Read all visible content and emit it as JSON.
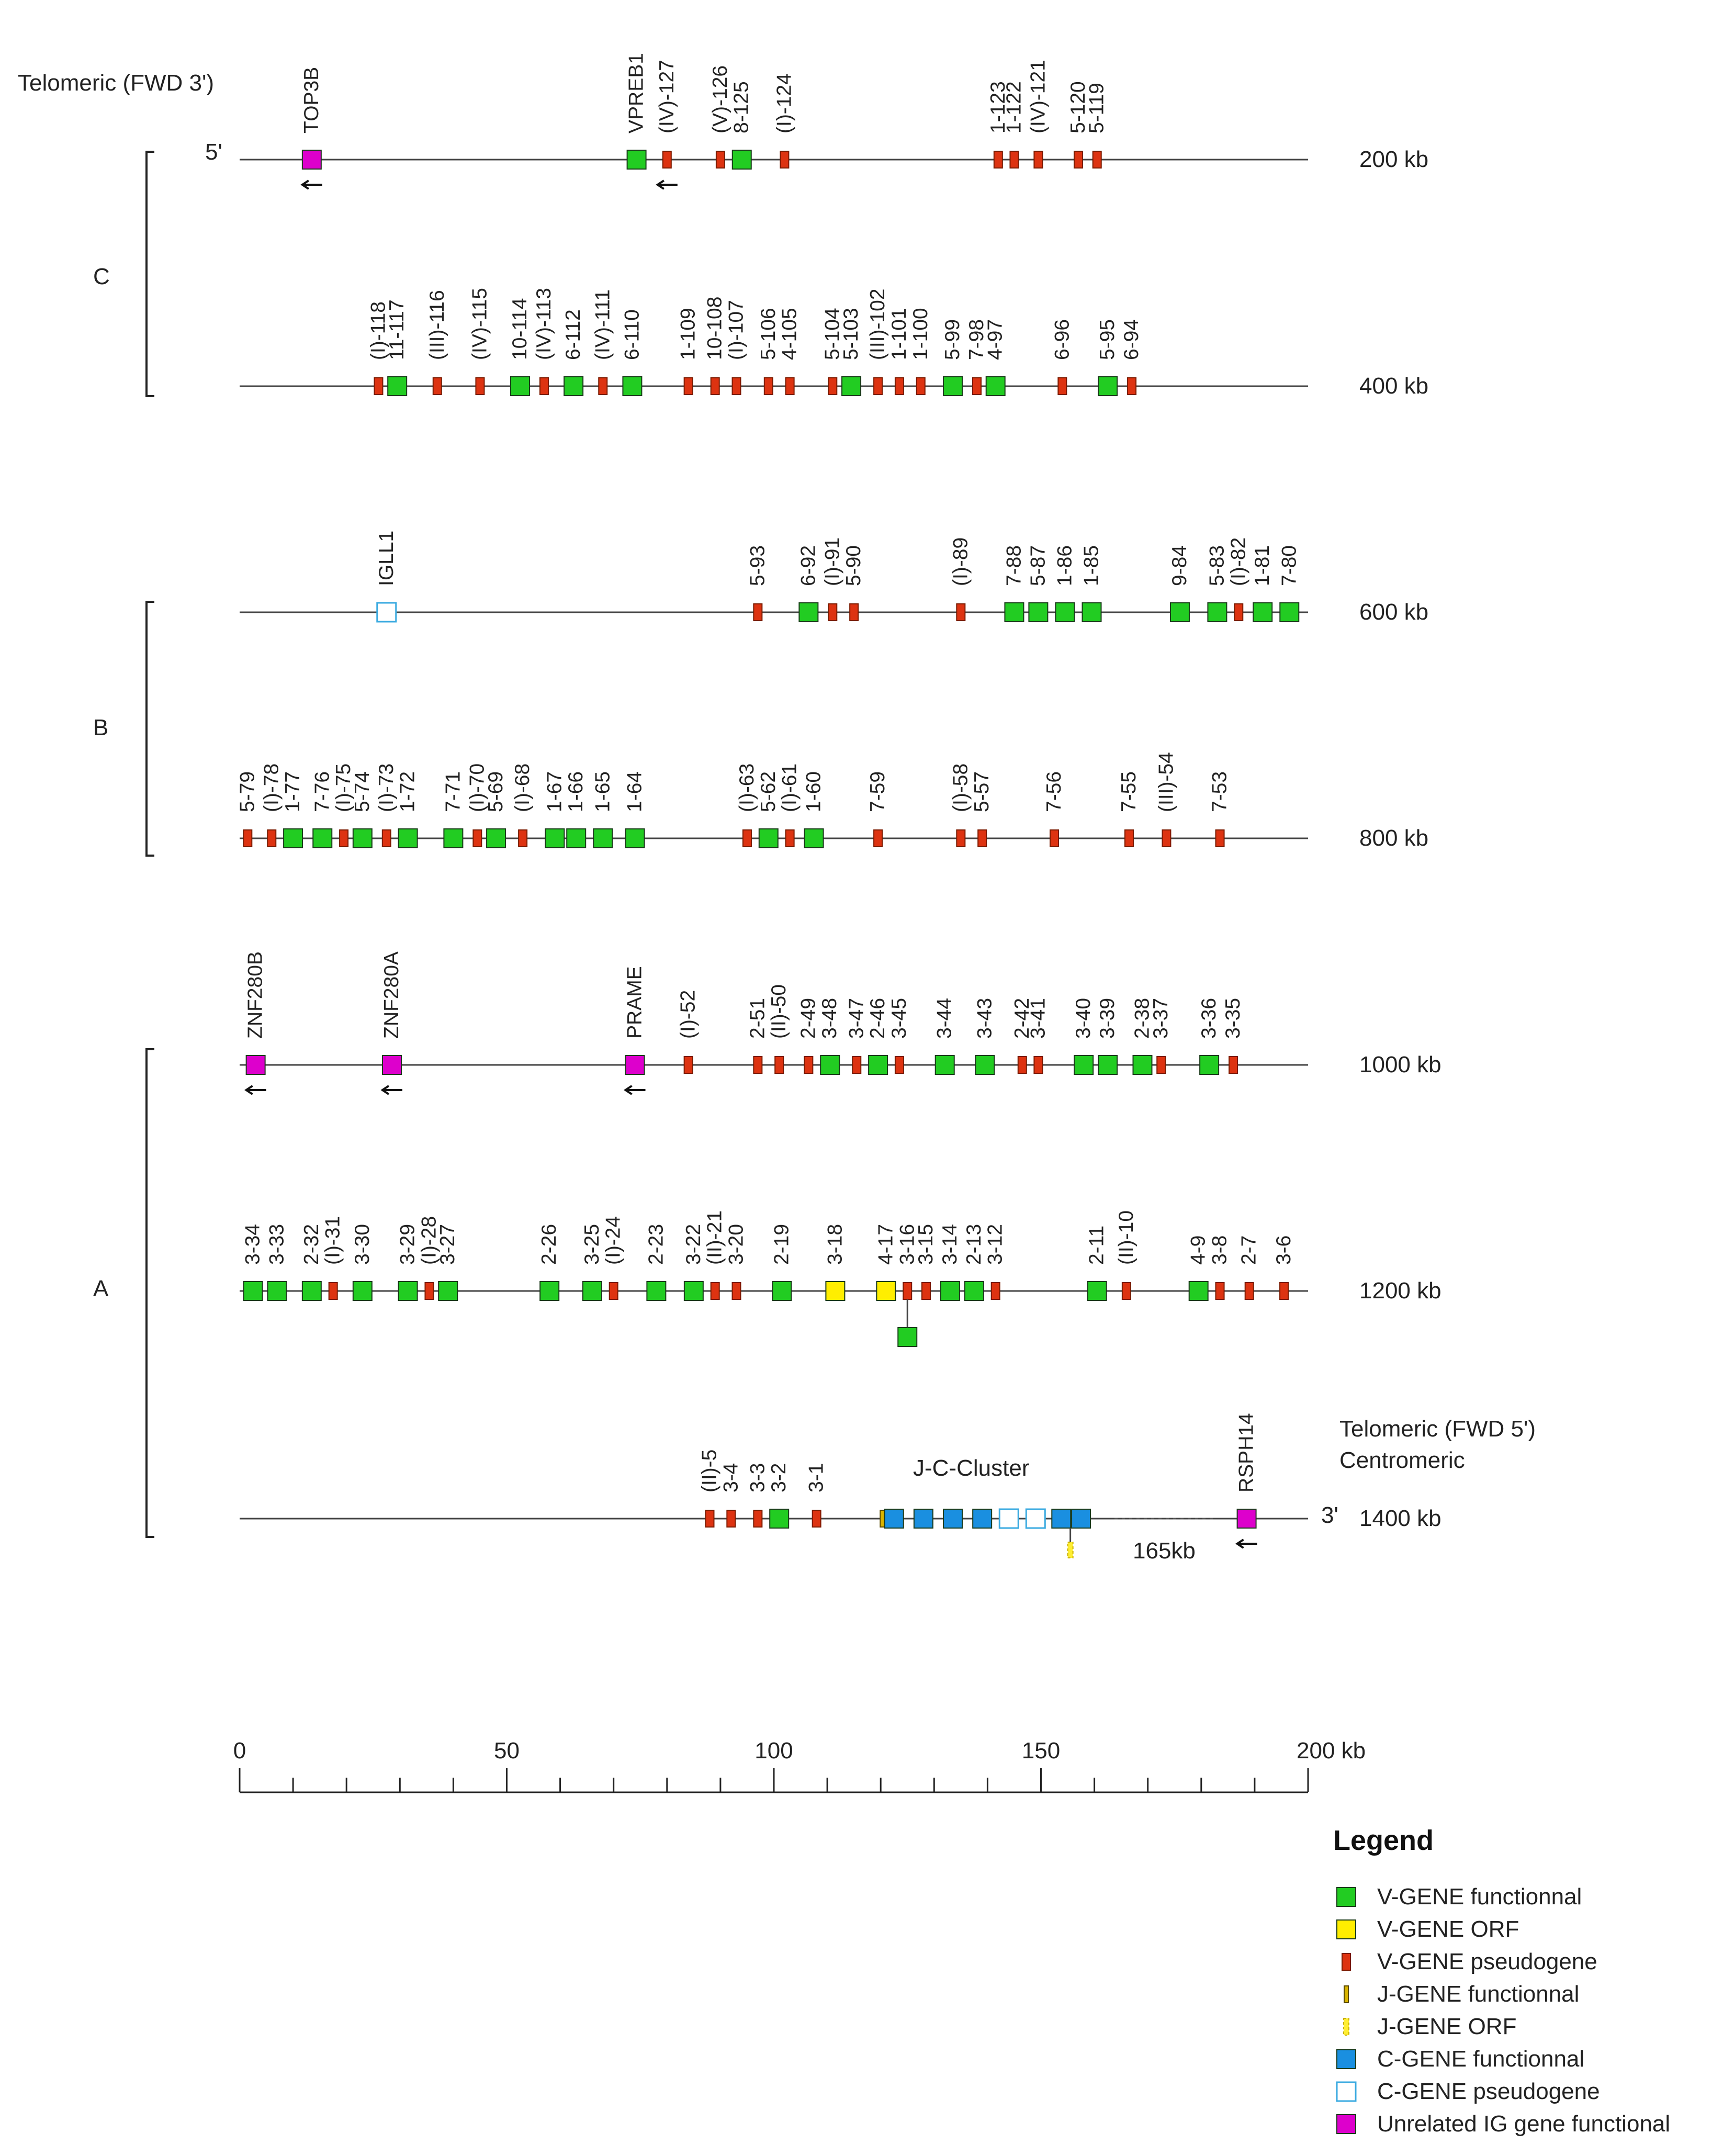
{
  "labels": {
    "telomeric_fwd3": "Telomeric (FWD 3')",
    "five_prime": "5'",
    "three_prime": "3'",
    "telomeric_fwd5": "Telomeric (FWD 5')",
    "centromeric": "Centromeric",
    "jc_cluster": "J-C-Cluster",
    "gap": "165kb"
  },
  "regions": [
    {
      "name": "C",
      "rows": [
        0,
        1
      ]
    },
    {
      "name": "B",
      "rows": [
        2,
        3
      ]
    },
    {
      "name": "A",
      "rows": [
        4,
        5,
        6
      ]
    }
  ],
  "rows": [
    {
      "kb_label": "200 kb",
      "genes": [
        {
          "name": "TOP3B",
          "pos": 13.5,
          "type": "unrelated",
          "arrow": true
        },
        {
          "name": "VPREB1",
          "pos": 74.3,
          "type": "v_func"
        },
        {
          "name": "(IV)-127",
          "pos": 80,
          "type": "v_pseudo",
          "arrow": true
        },
        {
          "name": "(V)-126",
          "pos": 90,
          "type": "v_pseudo"
        },
        {
          "name": "8-125",
          "pos": 94,
          "type": "v_func"
        },
        {
          "name": "(I)-124",
          "pos": 102,
          "type": "v_pseudo"
        },
        {
          "name": "1-123",
          "pos": 142,
          "type": "v_pseudo"
        },
        {
          "name": "1-122",
          "pos": 145,
          "type": "v_pseudo"
        },
        {
          "name": "(IV)-121",
          "pos": 149.5,
          "type": "v_pseudo"
        },
        {
          "name": "5-120",
          "pos": 157,
          "type": "v_pseudo"
        },
        {
          "name": "5-119",
          "pos": 160.5,
          "type": "v_pseudo"
        }
      ]
    },
    {
      "kb_label": "400 kb",
      "genes": [
        {
          "name": "(I)-118",
          "pos": 26,
          "type": "v_pseudo"
        },
        {
          "name": "11-117",
          "pos": 29.5,
          "type": "v_func"
        },
        {
          "name": "(III)-116",
          "pos": 37,
          "type": "v_pseudo"
        },
        {
          "name": "(IV)-115",
          "pos": 45,
          "type": "v_pseudo"
        },
        {
          "name": "10-114",
          "pos": 52.5,
          "type": "v_func"
        },
        {
          "name": "(IV)-113",
          "pos": 57,
          "type": "v_pseudo"
        },
        {
          "name": "6-112",
          "pos": 62.5,
          "type": "v_func"
        },
        {
          "name": "(IV)-111",
          "pos": 68,
          "type": "v_pseudo"
        },
        {
          "name": "6-110",
          "pos": 73.5,
          "type": "v_func"
        },
        {
          "name": "1-109",
          "pos": 84,
          "type": "v_pseudo"
        },
        {
          "name": "10-108",
          "pos": 89,
          "type": "v_pseudo"
        },
        {
          "name": "(I)-107",
          "pos": 93,
          "type": "v_pseudo"
        },
        {
          "name": "5-106",
          "pos": 99,
          "type": "v_pseudo"
        },
        {
          "name": "4-105",
          "pos": 103,
          "type": "v_pseudo"
        },
        {
          "name": "5-104",
          "pos": 111,
          "type": "v_pseudo"
        },
        {
          "name": "5-103",
          "pos": 114.5,
          "type": "v_func"
        },
        {
          "name": "(III)-102",
          "pos": 119.5,
          "type": "v_pseudo"
        },
        {
          "name": "1-101",
          "pos": 123.5,
          "type": "v_pseudo"
        },
        {
          "name": "1-100",
          "pos": 127.5,
          "type": "v_pseudo"
        },
        {
          "name": "5-99",
          "pos": 133.5,
          "type": "v_func"
        },
        {
          "name": "7-98",
          "pos": 138,
          "type": "v_pseudo"
        },
        {
          "name": "4-97",
          "pos": 141.5,
          "type": "v_func"
        },
        {
          "name": "6-96",
          "pos": 154,
          "type": "v_pseudo"
        },
        {
          "name": "5-95",
          "pos": 162.5,
          "type": "v_func"
        },
        {
          "name": "6-94",
          "pos": 167,
          "type": "v_pseudo"
        }
      ]
    },
    {
      "kb_label": "600 kb",
      "genes": [
        {
          "name": "IGLL1",
          "pos": 27.5,
          "type": "c_pseudo"
        },
        {
          "name": "5-93",
          "pos": 97,
          "type": "v_pseudo"
        },
        {
          "name": "6-92",
          "pos": 106.5,
          "type": "v_func"
        },
        {
          "name": "(I)-91",
          "pos": 111,
          "type": "v_pseudo"
        },
        {
          "name": "5-90",
          "pos": 115,
          "type": "v_pseudo"
        },
        {
          "name": "(I)-89",
          "pos": 135,
          "type": "v_pseudo"
        },
        {
          "name": "7-88",
          "pos": 145,
          "type": "v_func"
        },
        {
          "name": "5-87",
          "pos": 149.5,
          "type": "v_func"
        },
        {
          "name": "1-86",
          "pos": 154.5,
          "type": "v_func"
        },
        {
          "name": "1-85",
          "pos": 159.5,
          "type": "v_func"
        },
        {
          "name": "9-84",
          "pos": 176,
          "type": "v_func"
        },
        {
          "name": "5-83",
          "pos": 183,
          "type": "v_func"
        },
        {
          "name": "(I)-82",
          "pos": 187,
          "type": "v_pseudo"
        },
        {
          "name": "1-81",
          "pos": 191.5,
          "type": "v_func"
        },
        {
          "name": "7-80",
          "pos": 196.5,
          "type": "v_func"
        }
      ]
    },
    {
      "kb_label": "800 kb",
      "genes": [
        {
          "name": "5-79",
          "pos": 1.5,
          "type": "v_pseudo"
        },
        {
          "name": "(I)-78",
          "pos": 6,
          "type": "v_pseudo"
        },
        {
          "name": "1-77",
          "pos": 10,
          "type": "v_func"
        },
        {
          "name": "7-76",
          "pos": 15.5,
          "type": "v_func"
        },
        {
          "name": "(I)-75",
          "pos": 19.5,
          "type": "v_pseudo"
        },
        {
          "name": "5-74",
          "pos": 23,
          "type": "v_func"
        },
        {
          "name": "(I)-73",
          "pos": 27.5,
          "type": "v_pseudo"
        },
        {
          "name": "1-72",
          "pos": 31.5,
          "type": "v_func"
        },
        {
          "name": "7-71",
          "pos": 40,
          "type": "v_func"
        },
        {
          "name": "(I)-70",
          "pos": 44.5,
          "type": "v_pseudo"
        },
        {
          "name": "5-69",
          "pos": 48,
          "type": "v_func"
        },
        {
          "name": "(I)-68",
          "pos": 53,
          "type": "v_pseudo"
        },
        {
          "name": "1-67",
          "pos": 59,
          "type": "v_func"
        },
        {
          "name": "1-66",
          "pos": 63,
          "type": "v_func"
        },
        {
          "name": "1-65",
          "pos": 68,
          "type": "v_func"
        },
        {
          "name": "1-64",
          "pos": 74,
          "type": "v_func"
        },
        {
          "name": "(I)-63",
          "pos": 95,
          "type": "v_pseudo"
        },
        {
          "name": "5-62",
          "pos": 99,
          "type": "v_func"
        },
        {
          "name": "(I)-61",
          "pos": 103,
          "type": "v_pseudo"
        },
        {
          "name": "1-60",
          "pos": 107.5,
          "type": "v_func"
        },
        {
          "name": "7-59",
          "pos": 119.5,
          "type": "v_pseudo"
        },
        {
          "name": "(I)-58",
          "pos": 135,
          "type": "v_pseudo"
        },
        {
          "name": "5-57",
          "pos": 139,
          "type": "v_pseudo"
        },
        {
          "name": "7-56",
          "pos": 152.5,
          "type": "v_pseudo"
        },
        {
          "name": "7-55",
          "pos": 166.5,
          "type": "v_pseudo"
        },
        {
          "name": "(III)-54",
          "pos": 173.5,
          "type": "v_pseudo"
        },
        {
          "name": "7-53",
          "pos": 183.5,
          "type": "v_pseudo"
        }
      ]
    },
    {
      "kb_label": "1000 kb",
      "genes": [
        {
          "name": "ZNF280B",
          "pos": 3,
          "type": "unrelated",
          "arrow": true
        },
        {
          "name": "ZNF280A",
          "pos": 28.5,
          "type": "unrelated",
          "arrow": true
        },
        {
          "name": "PRAME",
          "pos": 74,
          "type": "unrelated",
          "arrow": true
        },
        {
          "name": "(I)-52",
          "pos": 84,
          "type": "v_pseudo"
        },
        {
          "name": "2-51",
          "pos": 97,
          "type": "v_pseudo"
        },
        {
          "name": "(II)-50",
          "pos": 101,
          "type": "v_pseudo"
        },
        {
          "name": "2-49",
          "pos": 106.5,
          "type": "v_pseudo"
        },
        {
          "name": "3-48",
          "pos": 110.5,
          "type": "v_func"
        },
        {
          "name": "3-47",
          "pos": 115.5,
          "type": "v_pseudo"
        },
        {
          "name": "2-46",
          "pos": 119.5,
          "type": "v_func"
        },
        {
          "name": "3-45",
          "pos": 123.5,
          "type": "v_pseudo"
        },
        {
          "name": "3-44",
          "pos": 132,
          "type": "v_func"
        },
        {
          "name": "3-43",
          "pos": 139.5,
          "type": "v_func"
        },
        {
          "name": "2-42",
          "pos": 146.5,
          "type": "v_pseudo"
        },
        {
          "name": "3-41",
          "pos": 149.5,
          "type": "v_pseudo"
        },
        {
          "name": "3-40",
          "pos": 158,
          "type": "v_func"
        },
        {
          "name": "3-39",
          "pos": 162.5,
          "type": "v_func"
        },
        {
          "name": "2-38",
          "pos": 169,
          "type": "v_func"
        },
        {
          "name": "3-37",
          "pos": 172.5,
          "type": "v_pseudo"
        },
        {
          "name": "3-36",
          "pos": 181.5,
          "type": "v_func"
        },
        {
          "name": "3-35",
          "pos": 186,
          "type": "v_pseudo"
        }
      ]
    },
    {
      "kb_label": "1200 kb",
      "genes": [
        {
          "name": "3-34",
          "pos": 2.5,
          "type": "v_func"
        },
        {
          "name": "3-33",
          "pos": 7,
          "type": "v_func"
        },
        {
          "name": "2-32",
          "pos": 13.5,
          "type": "v_func"
        },
        {
          "name": "(I)-31",
          "pos": 17.5,
          "type": "v_pseudo"
        },
        {
          "name": "3-30",
          "pos": 23,
          "type": "v_func"
        },
        {
          "name": "3-29",
          "pos": 31.5,
          "type": "v_func"
        },
        {
          "name": "(I)-28",
          "pos": 35.5,
          "type": "v_pseudo"
        },
        {
          "name": "3-27",
          "pos": 39,
          "type": "v_func"
        },
        {
          "name": "2-26",
          "pos": 58,
          "type": "v_func"
        },
        {
          "name": "3-25",
          "pos": 66,
          "type": "v_func"
        },
        {
          "name": "(I)-24",
          "pos": 70,
          "type": "v_pseudo"
        },
        {
          "name": "2-23",
          "pos": 78,
          "type": "v_func"
        },
        {
          "name": "3-22",
          "pos": 85,
          "type": "v_func"
        },
        {
          "name": "(II)-21",
          "pos": 89,
          "type": "v_pseudo"
        },
        {
          "name": "3-20",
          "pos": 93,
          "type": "v_pseudo"
        },
        {
          "name": "2-19",
          "pos": 101.5,
          "type": "v_func"
        },
        {
          "name": "3-18",
          "pos": 111.5,
          "type": "v_orf"
        },
        {
          "name": "4-17",
          "pos": 121,
          "type": "v_orf"
        },
        {
          "name": "3-16",
          "pos": 125,
          "type": "v_pseudo",
          "subfunc": true
        },
        {
          "name": "3-15",
          "pos": 128.5,
          "type": "v_pseudo"
        },
        {
          "name": "3-14",
          "pos": 133,
          "type": "v_func"
        },
        {
          "name": "2-13",
          "pos": 137.5,
          "type": "v_func"
        },
        {
          "name": "3-12",
          "pos": 141.5,
          "type": "v_pseudo"
        },
        {
          "name": "2-11",
          "pos": 160.5,
          "type": "v_func"
        },
        {
          "name": "(II)-10",
          "pos": 166,
          "type": "v_pseudo"
        },
        {
          "name": "4-9",
          "pos": 179.5,
          "type": "v_func"
        },
        {
          "name": "3-8",
          "pos": 183.5,
          "type": "v_pseudo"
        },
        {
          "name": "2-7",
          "pos": 189,
          "type": "v_pseudo"
        },
        {
          "name": "3-6",
          "pos": 195.5,
          "type": "v_pseudo"
        }
      ]
    },
    {
      "kb_label": "1400 kb",
      "genes": [
        {
          "name": "(II)-5",
          "pos": 88,
          "type": "v_pseudo"
        },
        {
          "name": "3-4",
          "pos": 92,
          "type": "v_pseudo"
        },
        {
          "name": "3-3",
          "pos": 97,
          "type": "v_pseudo"
        },
        {
          "name": "3-2",
          "pos": 101,
          "type": "v_func"
        },
        {
          "name": "3-1",
          "pos": 108,
          "type": "v_pseudo"
        },
        {
          "name": "",
          "pos": 120.3,
          "type": "j_func"
        },
        {
          "name": "",
          "pos": 122.5,
          "type": "c_func"
        },
        {
          "name": "",
          "pos": 128,
          "type": "c_func"
        },
        {
          "name": "",
          "pos": 133.5,
          "type": "c_func"
        },
        {
          "name": "",
          "pos": 139,
          "type": "c_func"
        },
        {
          "name": "",
          "pos": 144,
          "type": "c_pseudo"
        },
        {
          "name": "",
          "pos": 149,
          "type": "c_pseudo"
        },
        {
          "name": "",
          "pos": 153.8,
          "type": "c_func"
        },
        {
          "name": "",
          "pos": 157.5,
          "type": "c_func"
        },
        {
          "name": "RSPH14",
          "pos": 188.5,
          "type": "unrelated",
          "arrow": true
        }
      ]
    }
  ],
  "scale": {
    "ticks": [
      "0",
      "50",
      "100",
      "150",
      "200 kb"
    ],
    "max": 200
  },
  "legend": {
    "title": "Legend",
    "items": [
      {
        "type": "v_func",
        "label": "V-GENE functionnal"
      },
      {
        "type": "v_orf",
        "label": "V-GENE ORF"
      },
      {
        "type": "v_pseudo",
        "label": "V-GENE pseudogene"
      },
      {
        "type": "j_func",
        "label": "J-GENE functionnal"
      },
      {
        "type": "j_orf",
        "label": "J-GENE ORF"
      },
      {
        "type": "c_func",
        "label": "C-GENE functionnal"
      },
      {
        "type": "c_pseudo",
        "label": "C-GENE pseudogene"
      },
      {
        "type": "unrelated",
        "label": "Unrelated IG gene functional"
      }
    ]
  },
  "colors": {
    "v_func": "#22cc22",
    "v_orf": "#ffee00",
    "v_pseudo": "#dd3311",
    "j_func": "#d9b400",
    "j_orf": "#ffee33",
    "c_func": "#1a8fe0",
    "c_pseudo": "#ffffff",
    "c_pseudo_stroke": "#3aaae0",
    "unrelated": "#dd00cc"
  }
}
